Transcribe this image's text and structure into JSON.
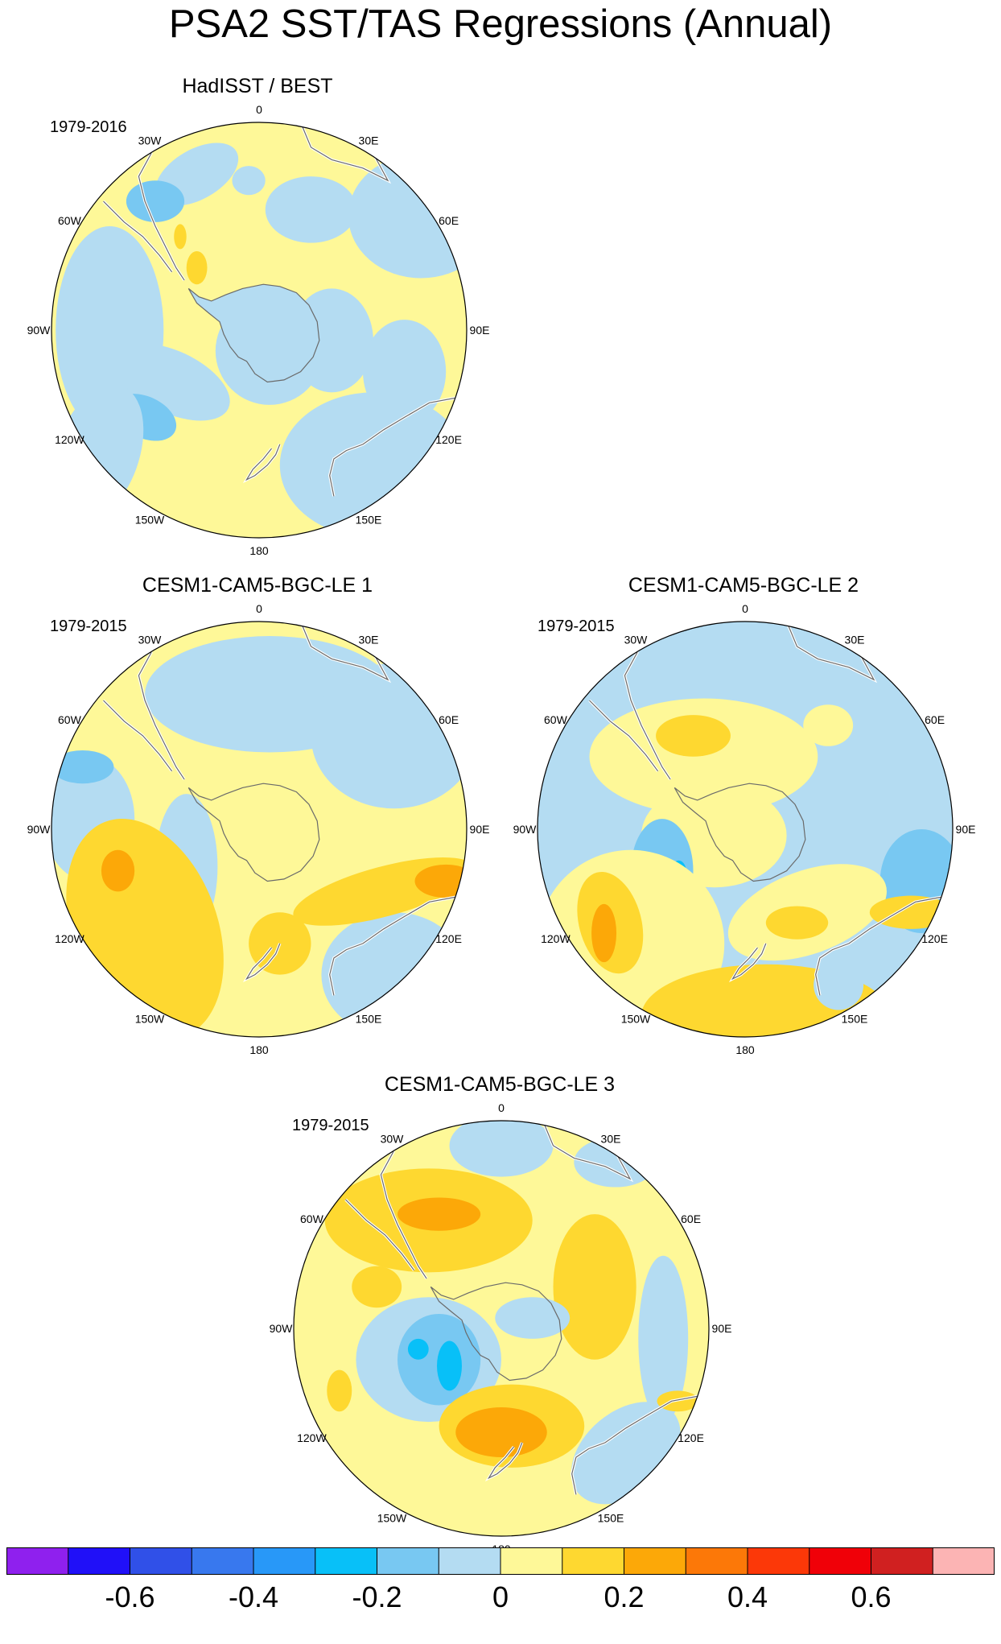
{
  "title": "PSA2 SST/TAS Regressions (Annual)",
  "lon_labels": [
    "0",
    "30E",
    "60E",
    "90E",
    "120E",
    "150E",
    "180",
    "150W",
    "120W",
    "90W",
    "60W",
    "30W"
  ],
  "panels": [
    {
      "title": "HadISST / BEST",
      "period": "1979-2016"
    },
    {
      "title": "CESM1-CAM5-BGC-LE 1",
      "period": "1979-2015"
    },
    {
      "title": "CESM1-CAM5-BGC-LE 2",
      "period": "1979-2015"
    },
    {
      "title": "CESM1-CAM5-BGC-LE 3",
      "period": "1979-2015"
    }
  ],
  "colorbar": {
    "colors": [
      "#8f20ee",
      "#2010f8",
      "#3050e8",
      "#3878ee",
      "#2898f8",
      "#08c0f8",
      "#78c8f2",
      "#b4dcf2",
      "#fef898",
      "#fed830",
      "#fca808",
      "#fc7808",
      "#fc3808",
      "#f00008",
      "#d02020",
      "#fcb4b4"
    ],
    "labels": [
      "-0.6",
      "-0.4",
      "-0.2",
      "0",
      "0.2",
      "0.4",
      "0.6"
    ]
  },
  "colors": {
    "land_fill": "#b4dcf2",
    "coast_line": "#6a6a6a"
  }
}
